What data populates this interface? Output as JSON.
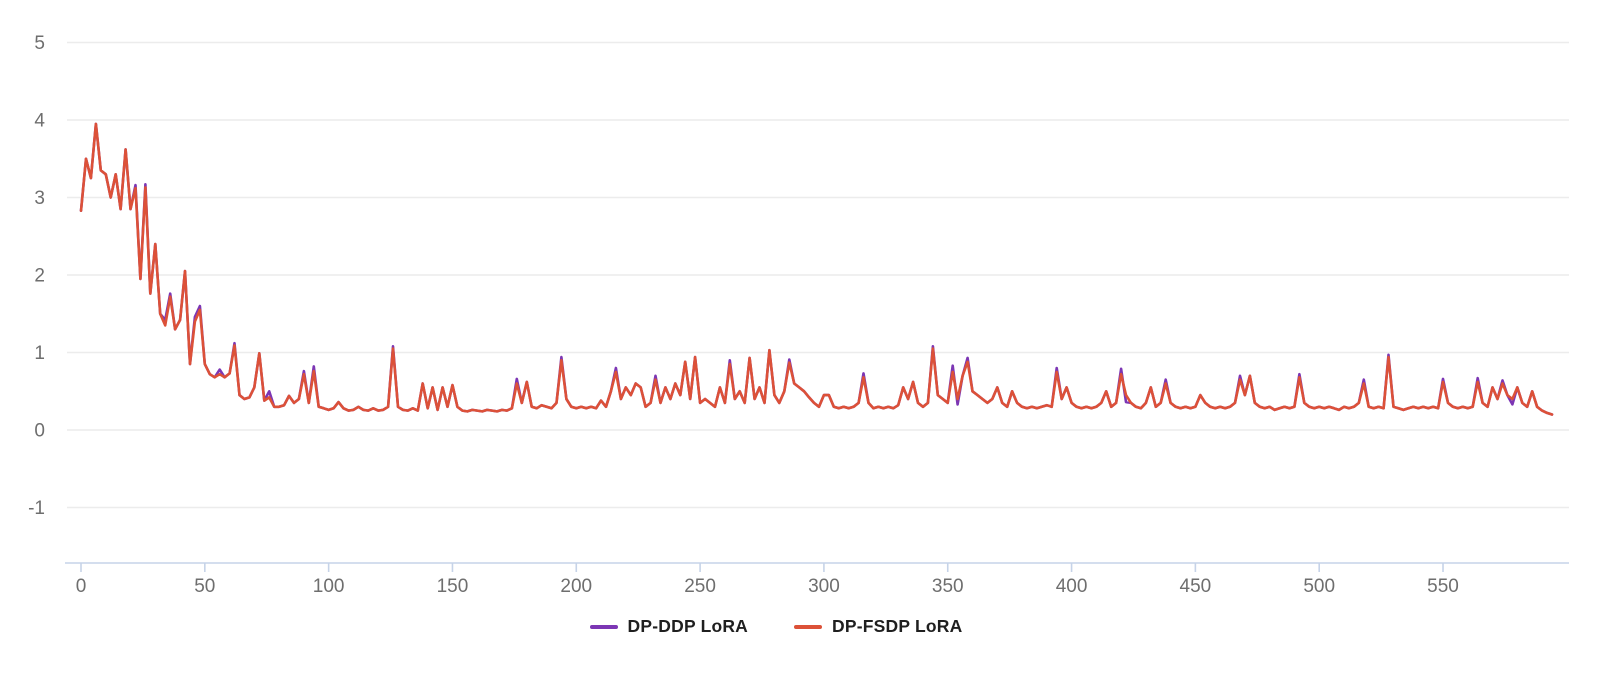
{
  "chart_data": {
    "type": "line",
    "title": "",
    "xlabel": "",
    "ylabel": "",
    "x_start": 0,
    "x_step": 2,
    "xticks": [
      0,
      50,
      100,
      150,
      200,
      250,
      300,
      350,
      400,
      450,
      500,
      550
    ],
    "yticks": [
      5,
      4,
      3,
      2,
      1,
      0,
      -1
    ],
    "xlim": [
      0,
      608
    ],
    "ylim": [
      -1.75,
      5.4
    ],
    "grid": "horizontal",
    "legend_position": "bottom",
    "series": [
      {
        "name": "DP-DDP LoRA",
        "color": "#7C36B4",
        "values": [
          2.83,
          3.5,
          3.25,
          3.95,
          3.35,
          3.3,
          3.0,
          3.3,
          2.85,
          3.62,
          2.85,
          3.16,
          1.95,
          3.17,
          1.76,
          2.4,
          1.5,
          1.42,
          1.76,
          1.3,
          1.42,
          2.05,
          0.85,
          1.46,
          1.6,
          0.85,
          0.72,
          0.68,
          0.78,
          0.68,
          0.73,
          1.12,
          0.45,
          0.4,
          0.42,
          0.55,
          0.99,
          0.38,
          0.5,
          0.3,
          0.3,
          0.32,
          0.44,
          0.35,
          0.4,
          0.76,
          0.35,
          0.82,
          0.3,
          0.28,
          0.26,
          0.28,
          0.36,
          0.28,
          0.25,
          0.26,
          0.3,
          0.26,
          0.25,
          0.28,
          0.25,
          0.26,
          0.3,
          1.08,
          0.3,
          0.26,
          0.25,
          0.28,
          0.25,
          0.6,
          0.28,
          0.55,
          0.26,
          0.55,
          0.3,
          0.58,
          0.3,
          0.25,
          0.24,
          0.26,
          0.25,
          0.24,
          0.26,
          0.25,
          0.24,
          0.26,
          0.25,
          0.28,
          0.66,
          0.35,
          0.62,
          0.3,
          0.28,
          0.32,
          0.3,
          0.28,
          0.35,
          0.94,
          0.4,
          0.3,
          0.28,
          0.3,
          0.28,
          0.3,
          0.28,
          0.38,
          0.3,
          0.5,
          0.8,
          0.4,
          0.55,
          0.45,
          0.6,
          0.55,
          0.3,
          0.35,
          0.7,
          0.35,
          0.55,
          0.4,
          0.6,
          0.45,
          0.88,
          0.4,
          0.94,
          0.35,
          0.4,
          0.35,
          0.3,
          0.55,
          0.35,
          0.9,
          0.4,
          0.5,
          0.35,
          0.93,
          0.4,
          0.55,
          0.35,
          1.03,
          0.45,
          0.35,
          0.5,
          0.91,
          0.6,
          0.55,
          0.5,
          0.42,
          0.35,
          0.3,
          0.45,
          0.45,
          0.3,
          0.28,
          0.3,
          0.28,
          0.3,
          0.35,
          0.73,
          0.35,
          0.28,
          0.3,
          0.28,
          0.3,
          0.28,
          0.32,
          0.55,
          0.4,
          0.62,
          0.35,
          0.3,
          0.35,
          1.08,
          0.45,
          0.4,
          0.35,
          0.83,
          0.33,
          0.7,
          0.93,
          0.5,
          0.45,
          0.4,
          0.35,
          0.4,
          0.55,
          0.35,
          0.3,
          0.5,
          0.35,
          0.3,
          0.28,
          0.3,
          0.28,
          0.3,
          0.32,
          0.3,
          0.8,
          0.4,
          0.55,
          0.35,
          0.3,
          0.28,
          0.3,
          0.28,
          0.3,
          0.35,
          0.5,
          0.3,
          0.35,
          0.79,
          0.36,
          0.35,
          0.3,
          0.28,
          0.35,
          0.55,
          0.3,
          0.35,
          0.65,
          0.35,
          0.3,
          0.28,
          0.3,
          0.28,
          0.3,
          0.45,
          0.35,
          0.3,
          0.28,
          0.3,
          0.28,
          0.3,
          0.35,
          0.7,
          0.45,
          0.7,
          0.35,
          0.3,
          0.28,
          0.3,
          0.26,
          0.28,
          0.3,
          0.28,
          0.3,
          0.72,
          0.35,
          0.3,
          0.28,
          0.3,
          0.28,
          0.3,
          0.28,
          0.26,
          0.3,
          0.28,
          0.3,
          0.35,
          0.65,
          0.3,
          0.28,
          0.3,
          0.28,
          0.97,
          0.3,
          0.28,
          0.26,
          0.28,
          0.3,
          0.28,
          0.3,
          0.28,
          0.3,
          0.28,
          0.66,
          0.35,
          0.3,
          0.28,
          0.3,
          0.28,
          0.3,
          0.67,
          0.35,
          0.3,
          0.55,
          0.4,
          0.64,
          0.45,
          0.33,
          0.55,
          0.35,
          0.3,
          0.5,
          0.3,
          0.25,
          0.22,
          0.2
        ]
      },
      {
        "name": "DP-FSDP LoRA",
        "color": "#DC5138",
        "values": [
          2.83,
          3.5,
          3.25,
          3.95,
          3.35,
          3.3,
          3.0,
          3.3,
          2.85,
          3.62,
          2.85,
          3.12,
          1.95,
          3.13,
          1.76,
          2.4,
          1.5,
          1.35,
          1.72,
          1.3,
          1.42,
          2.05,
          0.85,
          1.4,
          1.55,
          0.85,
          0.72,
          0.68,
          0.72,
          0.68,
          0.73,
          1.09,
          0.45,
          0.4,
          0.42,
          0.55,
          0.99,
          0.38,
          0.42,
          0.3,
          0.3,
          0.32,
          0.44,
          0.35,
          0.4,
          0.72,
          0.35,
          0.76,
          0.3,
          0.28,
          0.26,
          0.28,
          0.36,
          0.28,
          0.25,
          0.26,
          0.3,
          0.26,
          0.25,
          0.28,
          0.25,
          0.26,
          0.3,
          1.05,
          0.3,
          0.26,
          0.25,
          0.28,
          0.25,
          0.6,
          0.28,
          0.55,
          0.26,
          0.55,
          0.3,
          0.58,
          0.3,
          0.25,
          0.24,
          0.26,
          0.25,
          0.24,
          0.26,
          0.25,
          0.24,
          0.26,
          0.25,
          0.28,
          0.6,
          0.35,
          0.62,
          0.3,
          0.28,
          0.32,
          0.3,
          0.28,
          0.35,
          0.9,
          0.4,
          0.3,
          0.28,
          0.3,
          0.28,
          0.3,
          0.28,
          0.38,
          0.3,
          0.5,
          0.75,
          0.4,
          0.55,
          0.45,
          0.6,
          0.55,
          0.3,
          0.35,
          0.65,
          0.35,
          0.55,
          0.4,
          0.6,
          0.45,
          0.88,
          0.4,
          0.94,
          0.35,
          0.4,
          0.35,
          0.3,
          0.55,
          0.35,
          0.85,
          0.4,
          0.5,
          0.35,
          0.93,
          0.4,
          0.55,
          0.35,
          1.03,
          0.45,
          0.35,
          0.5,
          0.87,
          0.6,
          0.55,
          0.5,
          0.42,
          0.35,
          0.3,
          0.45,
          0.45,
          0.3,
          0.28,
          0.3,
          0.28,
          0.3,
          0.35,
          0.68,
          0.35,
          0.28,
          0.3,
          0.28,
          0.3,
          0.28,
          0.32,
          0.55,
          0.4,
          0.62,
          0.35,
          0.3,
          0.35,
          1.05,
          0.45,
          0.4,
          0.35,
          0.75,
          0.4,
          0.7,
          0.88,
          0.5,
          0.45,
          0.4,
          0.35,
          0.4,
          0.55,
          0.35,
          0.3,
          0.5,
          0.35,
          0.3,
          0.28,
          0.3,
          0.28,
          0.3,
          0.32,
          0.3,
          0.75,
          0.4,
          0.55,
          0.35,
          0.3,
          0.28,
          0.3,
          0.28,
          0.3,
          0.35,
          0.5,
          0.3,
          0.35,
          0.72,
          0.45,
          0.35,
          0.3,
          0.28,
          0.35,
          0.55,
          0.3,
          0.35,
          0.6,
          0.35,
          0.3,
          0.28,
          0.3,
          0.28,
          0.3,
          0.45,
          0.35,
          0.3,
          0.28,
          0.3,
          0.28,
          0.3,
          0.35,
          0.65,
          0.45,
          0.7,
          0.35,
          0.3,
          0.28,
          0.3,
          0.26,
          0.28,
          0.3,
          0.28,
          0.3,
          0.68,
          0.35,
          0.3,
          0.28,
          0.3,
          0.28,
          0.3,
          0.28,
          0.26,
          0.3,
          0.28,
          0.3,
          0.35,
          0.6,
          0.3,
          0.28,
          0.3,
          0.28,
          0.94,
          0.3,
          0.28,
          0.26,
          0.28,
          0.3,
          0.28,
          0.3,
          0.28,
          0.3,
          0.28,
          0.62,
          0.35,
          0.3,
          0.28,
          0.3,
          0.28,
          0.3,
          0.62,
          0.35,
          0.3,
          0.55,
          0.4,
          0.6,
          0.45,
          0.4,
          0.55,
          0.35,
          0.3,
          0.5,
          0.3,
          0.25,
          0.22,
          0.2
        ]
      }
    ]
  },
  "colors": {
    "background": "#FFFFFF",
    "gridline": "#ECECEC",
    "axis_line": "#C6D3E8",
    "tick_label": "#6E6E6E",
    "legend_text": "#1F1F1F"
  }
}
